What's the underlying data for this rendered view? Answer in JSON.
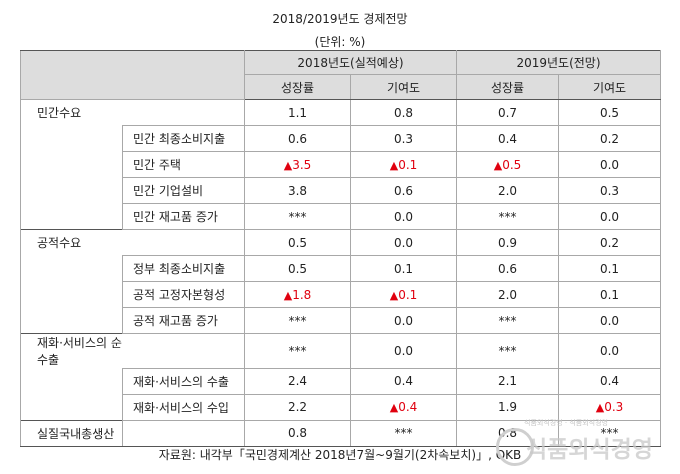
{
  "title": "2018/2019년도 경제전망",
  "unit": "(단위: %)",
  "header": {
    "period_2018": "2018년도(실적예상)",
    "period_2019": "2019년도(전망)",
    "growth": "성장률",
    "contribution": "기여도"
  },
  "rows": [
    {
      "label": "민간수요",
      "level": 1,
      "v": [
        "1.1",
        "0.8",
        "0.7",
        "0.5"
      ]
    },
    {
      "label": "민간 최종소비지출",
      "level": 2,
      "v": [
        "0.6",
        "0.3",
        "0.4",
        "0.2"
      ]
    },
    {
      "label": "민간 주택",
      "level": 2,
      "v": [
        "3.5",
        "0.1",
        "0.5",
        "0.0"
      ],
      "neg": [
        true,
        true,
        true,
        false
      ]
    },
    {
      "label": "민간 기업설비",
      "level": 2,
      "v": [
        "3.8",
        "0.6",
        "2.0",
        "0.3"
      ]
    },
    {
      "label": "민간 재고품 증가",
      "level": 2,
      "v": [
        "***",
        "0.0",
        "***",
        "0.0"
      ]
    },
    {
      "label": "공적수요",
      "level": 1,
      "v": [
        "0.5",
        "0.0",
        "0.9",
        "0.2"
      ]
    },
    {
      "label": "정부 최종소비지출",
      "level": 2,
      "v": [
        "0.5",
        "0.1",
        "0.6",
        "0.1"
      ]
    },
    {
      "label": "공적 고정자본형성",
      "level": 2,
      "v": [
        "1.8",
        "0.1",
        "2.0",
        "0.1"
      ],
      "neg": [
        true,
        true,
        false,
        false
      ]
    },
    {
      "label": "공적 재고품 증가",
      "level": 2,
      "v": [
        "***",
        "0.0",
        "***",
        "0.0"
      ]
    },
    {
      "label": "재화·서비스의 순수출",
      "level": 1,
      "v": [
        "***",
        "0.0",
        "***",
        "0.0"
      ]
    },
    {
      "label": "재화·서비스의 수출",
      "level": 2,
      "v": [
        "2.4",
        "0.4",
        "2.1",
        "0.4"
      ]
    },
    {
      "label": "재화·서비스의 수입",
      "level": 2,
      "v": [
        "2.2",
        "0.4",
        "1.9",
        "0.3"
      ],
      "neg": [
        false,
        true,
        false,
        true
      ]
    },
    {
      "label": "실질국내총생산",
      "level": 1,
      "v": [
        "0.8",
        "***",
        "0.8",
        "***"
      ]
    }
  ],
  "neg_marker": "▲",
  "colors": {
    "negative": "#e0000f",
    "header_bg": "#dddddd"
  },
  "source": "자료원: 내각부「국민경제계산 2018년7월~9월기(2차속보치)」, OKB",
  "watermark": {
    "small_text": "식품외식경영 · 식품외식경영",
    "main_text": "식품외식경영",
    "icon": "circle-logo-icon"
  }
}
